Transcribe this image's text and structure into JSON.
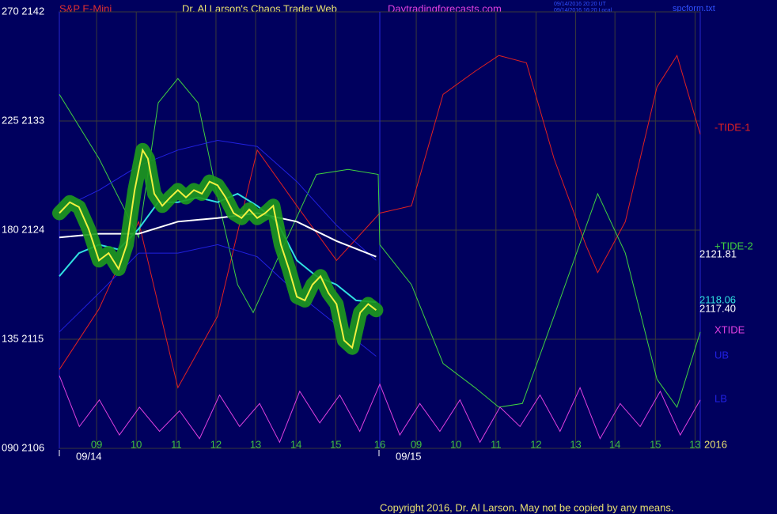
{
  "header": {
    "symbol": "S&P E-Mini",
    "site_title": "Dr. Al Larson's Chaos Trader Web",
    "url": "Daytradingforecasts.com",
    "time_ut": "09/14/2016 20:20 UT",
    "time_local": "09/14/2016 16:20 Local",
    "file": "spcform.txt"
  },
  "footer": "Copyright 2016, Dr. Al Larson. May not be copied by any means.",
  "chart_data": {
    "type": "line",
    "xlim": [
      0,
      16
    ],
    "ylim": [
      2106,
      2142
    ],
    "yticks": [
      {
        "value": 2106,
        "label": "090  2106"
      },
      {
        "value": 2115,
        "label": "135  2115"
      },
      {
        "value": 2124,
        "label": "180  2124"
      },
      {
        "value": 2133,
        "label": "225  2133"
      },
      {
        "value": 2142,
        "label": "270  2142"
      }
    ],
    "xticks": [
      {
        "value": 0.93,
        "label": "09"
      },
      {
        "value": 1.92,
        "label": "10"
      },
      {
        "value": 2.92,
        "label": "11"
      },
      {
        "value": 3.91,
        "label": "12"
      },
      {
        "value": 4.9,
        "label": "13"
      },
      {
        "value": 5.91,
        "label": "14"
      },
      {
        "value": 6.9,
        "label": "15"
      },
      {
        "value": 8.0,
        "label": "16"
      },
      {
        "value": 8.91,
        "label": "09"
      },
      {
        "value": 9.9,
        "label": "10"
      },
      {
        "value": 10.9,
        "label": "11"
      },
      {
        "value": 11.9,
        "label": "12"
      },
      {
        "value": 12.89,
        "label": "13"
      },
      {
        "value": 13.87,
        "label": "14"
      },
      {
        "value": 14.88,
        "label": "15"
      },
      {
        "value": 15.87,
        "label": "13"
      }
    ],
    "dates": [
      "09/14",
      "09/15"
    ],
    "year": "2016",
    "grid": true,
    "series": [
      {
        "name": "-TIDE-1",
        "color": "#e02020",
        "x": [
          0,
          0.99,
          1.98,
          2.96,
          3.95,
          4.94,
          5.93,
          6.92,
          8.0,
          8.79,
          9.58,
          10.38,
          10.97,
          11.66,
          12.35,
          13.14,
          13.44,
          14.13,
          14.92,
          15.42,
          16.0
        ],
        "values": [
          2112.5,
          2117.5,
          2124.7,
          2111.0,
          2116.9,
          2130.6,
          2126.0,
          2121.5,
          2125.4,
          2126.0,
          2135.2,
          2137.1,
          2138.4,
          2137.8,
          2129.9,
          2122.8,
          2120.5,
          2124.7,
          2135.8,
          2138.4,
          2131.9
        ]
      },
      {
        "name": "+TIDE-2",
        "color": "#40d040",
        "x": [
          0,
          0.99,
          1.98,
          2.47,
          2.96,
          3.46,
          3.95,
          4.45,
          4.84,
          5.43,
          6.42,
          7.21,
          7.96,
          8.0,
          8.79,
          9.58,
          10.38,
          10.97,
          11.56,
          12.35,
          13.44,
          14.13,
          14.92,
          15.42,
          16.0
        ],
        "values": [
          2135.2,
          2129.9,
          2123.4,
          2134.5,
          2136.5,
          2134.5,
          2126.7,
          2119.5,
          2117.2,
          2121.5,
          2128.6,
          2129.0,
          2128.6,
          2122.8,
          2119.5,
          2113.0,
          2111.0,
          2109.4,
          2109.7,
          2116.9,
          2127.0,
          2122.1,
          2111.7,
          2109.4,
          2115.6
        ]
      },
      {
        "name": "XTIDE",
        "color": "#e040e0",
        "x": [
          0,
          0.5,
          1,
          1.5,
          2,
          2.5,
          3,
          3.5,
          4,
          4.5,
          5,
          5.5,
          6,
          6.5,
          7,
          7.5,
          8,
          8.5,
          9,
          9.5,
          10,
          10.5,
          11,
          11.5,
          12,
          12.5,
          13,
          13.5,
          14,
          14.5,
          15,
          15.5,
          16
        ],
        "values": [
          2112.0,
          2107.8,
          2110.0,
          2107.1,
          2109.4,
          2107.4,
          2109.1,
          2106.8,
          2110.4,
          2107.8,
          2109.7,
          2106.5,
          2110.7,
          2108.1,
          2110.4,
          2107.4,
          2111.3,
          2107.1,
          2109.7,
          2107.4,
          2110.0,
          2106.5,
          2109.4,
          2107.8,
          2110.4,
          2107.4,
          2111.0,
          2106.8,
          2109.7,
          2107.8,
          2110.7,
          2107.1,
          2110.0
        ]
      },
      {
        "name": "UB",
        "color": "#2020e0",
        "x": [
          0,
          0.99,
          1.98,
          2.96,
          3.95,
          4.94,
          5.93,
          6.92,
          7.91
        ],
        "values": [
          2125.7,
          2127.3,
          2129.3,
          2130.6,
          2131.4,
          2130.9,
          2128.0,
          2124.4,
          2121.5
        ]
      },
      {
        "name": "LB",
        "color": "#2020e0",
        "x": [
          0,
          0.99,
          1.98,
          2.96,
          3.95,
          4.94,
          5.93,
          6.92,
          7.91
        ],
        "values": [
          2115.6,
          2118.8,
          2122.1,
          2122.1,
          2122.8,
          2121.8,
          2118.8,
          2116.2,
          2113.6
        ]
      },
      {
        "color": "#ffffff",
        "end_label": "2121.81",
        "x": [
          0,
          0.99,
          1.98,
          2.96,
          3.95,
          4.94,
          5.93,
          6.92,
          7.91
        ],
        "values": [
          2123.4,
          2123.7,
          2123.7,
          2124.7,
          2125.0,
          2125.4,
          2124.7,
          2123.1,
          2121.81
        ]
      },
      {
        "color": "#30e0e0",
        "end_label": "2118.06",
        "x": [
          0,
          0.49,
          0.99,
          1.48,
          1.98,
          2.47,
          2.96,
          3.46,
          3.95,
          4.45,
          4.94,
          5.43,
          5.93,
          6.42,
          6.92,
          7.41,
          7.91
        ],
        "values": [
          2120.2,
          2122.1,
          2122.8,
          2122.4,
          2124.1,
          2126.3,
          2126.3,
          2126.7,
          2126.3,
          2127.0,
          2126.0,
          2124.7,
          2121.5,
          2120.2,
          2119.5,
          2118.2,
          2118.06
        ]
      },
      {
        "color": "#f0f040",
        "end_label": "2117.40",
        "x": [
          0,
          0.26,
          0.49,
          0.73,
          0.99,
          1.23,
          1.48,
          1.68,
          1.88,
          2.08,
          2.21,
          2.37,
          2.57,
          2.77,
          2.96,
          3.16,
          3.36,
          3.56,
          3.75,
          3.95,
          4.15,
          4.35,
          4.55,
          4.74,
          4.94,
          5.14,
          5.34,
          5.53,
          5.73,
          5.93,
          6.13,
          6.32,
          6.52,
          6.72,
          6.92,
          7.11,
          7.31,
          7.51,
          7.71,
          7.91
        ],
        "values": [
          2125.4,
          2126.3,
          2125.9,
          2124.1,
          2121.5,
          2122.1,
          2120.8,
          2122.8,
          2127.3,
          2130.6,
          2129.9,
          2127.0,
          2126.0,
          2126.7,
          2127.3,
          2126.7,
          2127.3,
          2127.0,
          2128.0,
          2127.7,
          2126.7,
          2125.4,
          2125.0,
          2125.7,
          2125.0,
          2125.4,
          2126.0,
          2122.8,
          2120.8,
          2118.5,
          2118.2,
          2119.5,
          2120.2,
          2118.8,
          2117.9,
          2114.9,
          2114.3,
          2117.2,
          2117.9,
          2117.4
        ]
      }
    ]
  }
}
